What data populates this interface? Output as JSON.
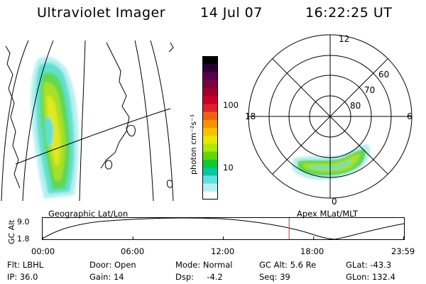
{
  "header": {
    "title": "Ultraviolet Imager",
    "date": "14 Jul 07",
    "time": "16:22:25 UT"
  },
  "colorbar": {
    "unit_label": "photon cm⁻²s⁻¹",
    "ticks": [
      "100",
      "10"
    ],
    "colors": [
      "#000000",
      "#2a0030",
      "#5a0050",
      "#7a0040",
      "#a00028",
      "#c8002a",
      "#e0202a",
      "#f06010",
      "#f89000",
      "#f8c000",
      "#e8e800",
      "#b0e800",
      "#60d800",
      "#10c830",
      "#00c8a0",
      "#60e0e0",
      "#b8f0f0",
      "#ffffff"
    ]
  },
  "polar": {
    "mlt_labels": [
      "12",
      "18",
      "6",
      "0"
    ],
    "lat_labels": [
      "60",
      "70",
      "80"
    ]
  },
  "orbit_plot": {
    "left_title": "Geographic Lat/Lon",
    "right_title": "Apex  MLat/MLT",
    "y_axis_label": "GC Alt",
    "y_ticks": [
      "9.0",
      "1.8"
    ],
    "x_ticks": [
      "00:00",
      "06:00",
      "12:00",
      "18:00",
      "23:59"
    ],
    "current_marker_hours": 16.37,
    "marker_color": "#d03030"
  },
  "info": {
    "flt": "Flt: LBHL",
    "ip": "IP: 36.0",
    "door": "Door: Open",
    "gain": "Gain: 14",
    "mode": "Mode: Normal",
    "dsp": "Dsp:     -4.2",
    "gc_alt": "GC Alt: 5.6 Re",
    "seq": "Seq: 39",
    "glat": "GLat: -43.3",
    "glon": "GLon: 132.4"
  }
}
